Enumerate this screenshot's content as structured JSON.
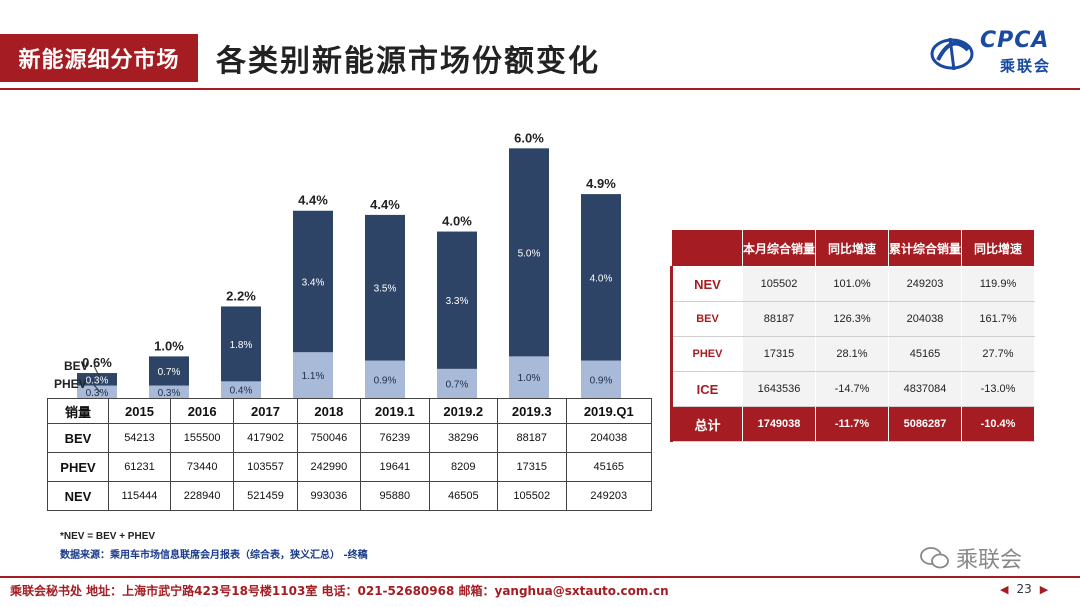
{
  "header": {
    "section_label": "新能源细分市场",
    "page_title": "各类别新能源市场份额变化",
    "logo_text": "CPCA",
    "logo_sub": "乘联会"
  },
  "chart_data": {
    "type": "bar",
    "stacked": true,
    "categories": [
      "2015",
      "2016",
      "2017",
      "2018",
      "2019.1",
      "2019.2",
      "2019.3",
      "2019.Q1"
    ],
    "series": [
      {
        "name": "PHEV",
        "values": [
          0.3,
          0.3,
          0.4,
          1.1,
          0.9,
          0.7,
          1.0,
          0.9
        ],
        "labels": [
          "0.3%",
          "0.3%",
          "0.4%",
          "1.1%",
          "0.9%",
          "0.7%",
          "1.0%",
          "0.9%"
        ],
        "color": "#a9b9d8"
      },
      {
        "name": "BEV",
        "values": [
          0.3,
          0.7,
          1.8,
          3.4,
          3.5,
          3.3,
          5.0,
          4.0
        ],
        "labels": [
          "0.3%",
          "0.7%",
          "1.8%",
          "3.4%",
          "3.5%",
          "3.3%",
          "5.0%",
          "4.0%"
        ],
        "color": "#2e4467"
      }
    ],
    "totals": [
      0.6,
      1.0,
      2.2,
      4.4,
      4.4,
      4.0,
      6.0,
      4.9
    ],
    "total_labels": [
      "0.6%",
      "1.0%",
      "2.2%",
      "4.4%",
      "4.4%",
      "4.0%",
      "6.0%",
      "4.9%"
    ],
    "ylim": [
      0,
      6.2
    ],
    "legend_labels": {
      "bev": "BEV",
      "phev": "PHEV"
    }
  },
  "sales_table": {
    "corner": "销量",
    "years": [
      "2015",
      "2016",
      "2017",
      "2018",
      "2019.1",
      "2019.2",
      "2019.3",
      "2019.Q1"
    ],
    "rows": [
      {
        "label": "BEV",
        "values": [
          "54213",
          "155500",
          "417902",
          "750046",
          "76239",
          "38296",
          "88187",
          "204038"
        ]
      },
      {
        "label": "PHEV",
        "values": [
          "61231",
          "73440",
          "103557",
          "242990",
          "19641",
          "8209",
          "17315",
          "45165"
        ]
      },
      {
        "label": "NEV",
        "values": [
          "115444",
          "228940",
          "521459",
          "993036",
          "95880",
          "46505",
          "105502",
          "249203"
        ]
      }
    ]
  },
  "side_table": {
    "headers": [
      "",
      "本月综合销量",
      "同比增速",
      "累计综合销量",
      "同比增速"
    ],
    "rows": [
      {
        "label": "NEV",
        "values": [
          "105502",
          "101.0%",
          "249203",
          "119.9%"
        ]
      },
      {
        "label": "BEV",
        "values": [
          "88187",
          "126.3%",
          "204038",
          "161.7%"
        ]
      },
      {
        "label": "PHEV",
        "values": [
          "17315",
          "28.1%",
          "45165",
          "27.7%"
        ]
      },
      {
        "label": "ICE",
        "values": [
          "1643536",
          "-14.7%",
          "4837084",
          "-13.0%"
        ]
      },
      {
        "label": "总计",
        "values": [
          "1749038",
          "-11.7%",
          "5086287",
          "-10.4%"
        ]
      }
    ]
  },
  "notes": {
    "formula": "*NEV = BEV + PHEV",
    "source": "数据来源：乘用车市场信息联席会月报表（综合表，狭义汇总）  -终稿"
  },
  "watermark": "乘联会",
  "footer": {
    "text": "乘联会秘书处   地址：上海市武宁路423号18号楼1103室  电话：021-52680968   邮箱：yanghua@sxtauto.com.cn",
    "page_number": "23"
  }
}
